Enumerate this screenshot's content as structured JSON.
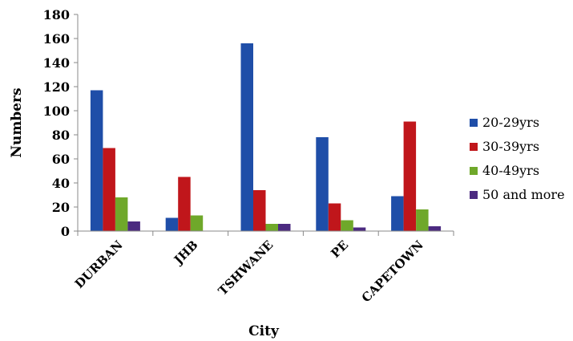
{
  "chart_data": {
    "type": "bar",
    "categories": [
      "DURBAN",
      "JHB",
      "TSHWANE",
      "PE",
      "CAPETOWN"
    ],
    "series": [
      {
        "name": "20-29yrs",
        "values": [
          117,
          11,
          156,
          78,
          29
        ],
        "color": "#1f4ea8"
      },
      {
        "name": "30-39yrs",
        "values": [
          69,
          45,
          34,
          23,
          91
        ],
        "color": "#c0161b"
      },
      {
        "name": "40-49yrs",
        "values": [
          28,
          13,
          6,
          9,
          18
        ],
        "color": "#6fa82a"
      },
      {
        "name": "50 and more",
        "values": [
          8,
          0,
          6,
          3,
          4
        ],
        "color": "#4b2a80"
      }
    ],
    "xlabel": "City",
    "ylabel": "Numbers",
    "ylim": [
      0,
      180
    ],
    "yticks": [
      "0",
      "20",
      "40",
      "60",
      "80",
      "100",
      "120",
      "140",
      "160",
      "180"
    ],
    "grid": false,
    "legend_position": "right"
  }
}
